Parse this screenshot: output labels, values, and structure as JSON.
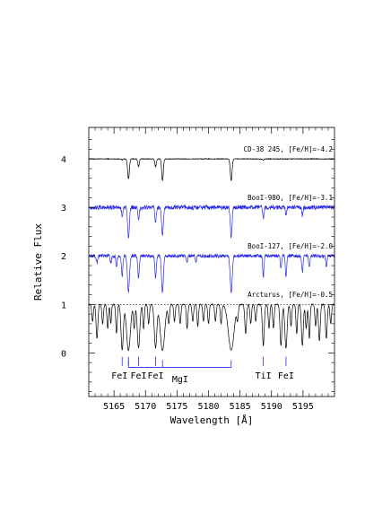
{
  "chart_data": {
    "type": "line",
    "xlabel": "Wavelength [Å]",
    "ylabel": "Relative Flux",
    "xlim": [
      5161,
      5200
    ],
    "ylim": [
      -0.9,
      4.65
    ],
    "x_ticks": [
      5165,
      5170,
      5175,
      5180,
      5185,
      5190,
      5195
    ],
    "y_ticks": [
      0,
      1,
      2,
      3,
      4
    ],
    "reference_line": {
      "y": 1.0,
      "style": "dotted"
    },
    "series": [
      {
        "name": "CD-38 245, [Fe/H]=-4.2",
        "color": "#000000",
        "offset": 3.0,
        "noise": 0.008,
        "depth_scale": 0.45,
        "x": [
          5161,
          5200
        ],
        "lines": [
          [
            5166.3,
            0.05,
            0.1
          ],
          [
            5167.3,
            0.9,
            0.14
          ],
          [
            5168.9,
            0.35,
            0.12
          ],
          [
            5171.6,
            0.35,
            0.12
          ],
          [
            5172.7,
            1.0,
            0.13
          ],
          [
            5183.6,
            1.0,
            0.14
          ],
          [
            5188.7,
            0.05,
            0.1
          ]
        ]
      },
      {
        "name": "BooI-980, [Fe/H]=-3.1",
        "color": "#2a2ae8",
        "offset": 2.0,
        "noise": 0.045,
        "depth_scale": 0.6,
        "x": [
          5161,
          5200
        ],
        "lines": [
          [
            5166.3,
            0.25,
            0.12
          ],
          [
            5167.3,
            1.0,
            0.14
          ],
          [
            5168.9,
            0.45,
            0.12
          ],
          [
            5171.6,
            0.5,
            0.12
          ],
          [
            5172.7,
            1.0,
            0.13
          ],
          [
            5183.6,
            1.0,
            0.14
          ],
          [
            5188.7,
            0.35,
            0.1
          ],
          [
            5192.3,
            0.3,
            0.1
          ],
          [
            5194.9,
            0.25,
            0.1
          ]
        ]
      },
      {
        "name": "BooI-127, [Fe/H]=-2.0",
        "color": "#2a2ae8",
        "offset": 1.0,
        "noise": 0.035,
        "depth_scale": 0.75,
        "x": [
          5161,
          5200
        ],
        "lines": [
          [
            5162.3,
            0.2,
            0.1
          ],
          [
            5164.5,
            0.2,
            0.1
          ],
          [
            5165.4,
            0.3,
            0.1
          ],
          [
            5166.3,
            0.55,
            0.12
          ],
          [
            5167.3,
            1.0,
            0.16
          ],
          [
            5168.9,
            0.6,
            0.12
          ],
          [
            5171.6,
            0.6,
            0.12
          ],
          [
            5172.7,
            1.0,
            0.15
          ],
          [
            5176.6,
            0.2,
            0.1
          ],
          [
            5178.0,
            0.2,
            0.1
          ],
          [
            5183.6,
            1.0,
            0.16
          ],
          [
            5188.7,
            0.6,
            0.1
          ],
          [
            5191.5,
            0.35,
            0.1
          ],
          [
            5192.3,
            0.6,
            0.1
          ],
          [
            5194.9,
            0.45,
            0.1
          ],
          [
            5196.0,
            0.3,
            0.1
          ],
          [
            5198.7,
            0.3,
            0.1
          ]
        ]
      },
      {
        "name": "Arcturus, [Fe/H]=-0.5",
        "color": "#000000",
        "offset": 0.0,
        "noise": 0.01,
        "depth_scale": 1.0,
        "x": [
          5161,
          5200
        ],
        "lines": [
          [
            5161.6,
            0.35,
            0.12
          ],
          [
            5162.3,
            0.7,
            0.14
          ],
          [
            5163.2,
            0.4,
            0.12
          ],
          [
            5164.0,
            0.5,
            0.12
          ],
          [
            5164.5,
            0.4,
            0.1
          ],
          [
            5165.4,
            0.6,
            0.12
          ],
          [
            5166.3,
            0.95,
            0.18
          ],
          [
            5167.3,
            0.95,
            0.3
          ],
          [
            5168.2,
            0.5,
            0.12
          ],
          [
            5168.9,
            0.9,
            0.2
          ],
          [
            5169.7,
            0.5,
            0.12
          ],
          [
            5170.5,
            0.4,
            0.12
          ],
          [
            5171.6,
            0.9,
            0.2
          ],
          [
            5172.7,
            0.95,
            0.35
          ],
          [
            5173.7,
            0.4,
            0.12
          ],
          [
            5174.6,
            0.35,
            0.12
          ],
          [
            5175.5,
            0.4,
            0.12
          ],
          [
            5176.6,
            0.5,
            0.12
          ],
          [
            5177.5,
            0.35,
            0.12
          ],
          [
            5178.3,
            0.45,
            0.12
          ],
          [
            5179.2,
            0.35,
            0.12
          ],
          [
            5180.0,
            0.4,
            0.12
          ],
          [
            5181.1,
            0.35,
            0.12
          ],
          [
            5182.0,
            0.4,
            0.12
          ],
          [
            5183.6,
            0.95,
            0.45
          ],
          [
            5184.6,
            0.3,
            0.12
          ],
          [
            5185.9,
            0.6,
            0.14
          ],
          [
            5186.7,
            0.4,
            0.12
          ],
          [
            5187.5,
            0.35,
            0.12
          ],
          [
            5188.7,
            0.85,
            0.15
          ],
          [
            5189.6,
            0.5,
            0.12
          ],
          [
            5190.3,
            0.5,
            0.12
          ],
          [
            5191.5,
            0.85,
            0.15
          ],
          [
            5192.3,
            0.9,
            0.18
          ],
          [
            5193.1,
            0.45,
            0.12
          ],
          [
            5194.0,
            0.6,
            0.12
          ],
          [
            5194.9,
            0.85,
            0.15
          ],
          [
            5195.5,
            0.5,
            0.12
          ],
          [
            5196.0,
            0.7,
            0.12
          ],
          [
            5197.0,
            0.45,
            0.12
          ],
          [
            5197.6,
            0.75,
            0.14
          ],
          [
            5198.7,
            0.7,
            0.14
          ],
          [
            5199.4,
            0.4,
            0.12
          ]
        ]
      }
    ],
    "line_ids": [
      {
        "label": "FeI",
        "wavelengths": [
          5166.3,
          5167.3
        ]
      },
      {
        "label": "FeI",
        "wavelengths": [
          5168.9
        ]
      },
      {
        "label": "FeI",
        "wavelengths": [
          5171.6
        ]
      },
      {
        "label": "MgI",
        "wavelengths": [
          5167.3,
          5172.7,
          5183.6
        ]
      },
      {
        "label": "TiI",
        "wavelengths": [
          5188.7
        ]
      },
      {
        "label": "FeI",
        "wavelengths": [
          5192.3
        ]
      }
    ]
  }
}
